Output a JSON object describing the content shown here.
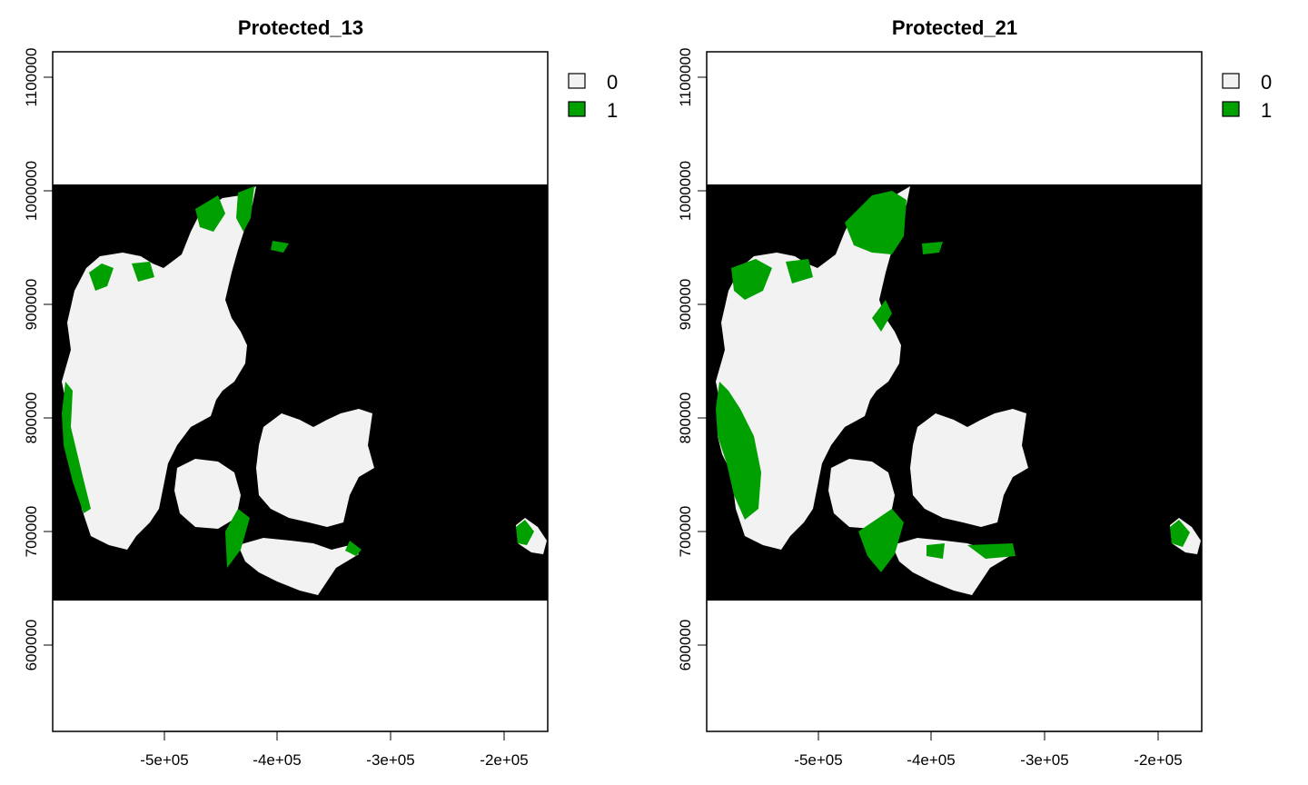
{
  "colors": {
    "background_mask": "#000000",
    "class_0": "#f2f2f2",
    "class_1": "#00a000",
    "frame": "#000000"
  },
  "panels": [
    {
      "title": "Protected_13",
      "legend": [
        {
          "label": "0",
          "color": "#f2f2f2"
        },
        {
          "label": "1",
          "color": "#00a000"
        }
      ],
      "x_ticks": [
        "-5e+05",
        "-4e+05",
        "-3e+05",
        "-2e+05"
      ],
      "y_ticks": [
        "600000",
        "700000",
        "800000",
        "900000",
        "1000000",
        "1100000"
      ]
    },
    {
      "title": "Protected_21",
      "legend": [
        {
          "label": "0",
          "color": "#f2f2f2"
        },
        {
          "label": "1",
          "color": "#00a000"
        }
      ],
      "x_ticks": [
        "-5e+05",
        "-4e+05",
        "-3e+05",
        "-2e+05"
      ],
      "y_ticks": [
        "600000",
        "700000",
        "800000",
        "900000",
        "1000000",
        "1100000"
      ]
    }
  ]
}
